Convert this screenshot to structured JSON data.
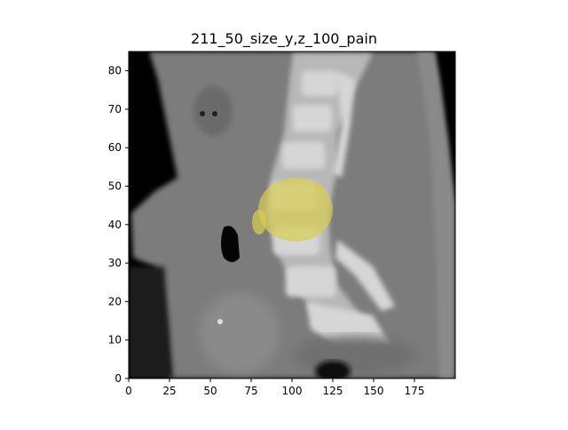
{
  "figure": {
    "title": "211_50_size_y,z_100_pain",
    "x_ticks": [
      "0",
      "25",
      "50",
      "75",
      "100",
      "125",
      "150",
      "175"
    ],
    "y_ticks": [
      "0",
      "10",
      "20",
      "30",
      "40",
      "50",
      "60",
      "70",
      "80"
    ],
    "x_range": [
      0,
      200
    ],
    "y_range": [
      0,
      85
    ],
    "overlay_color": "#d8cc55",
    "image_description_colors": {
      "background": "#000000",
      "tissue": "#7a7a7a",
      "bone": "#cfcfcf"
    }
  }
}
